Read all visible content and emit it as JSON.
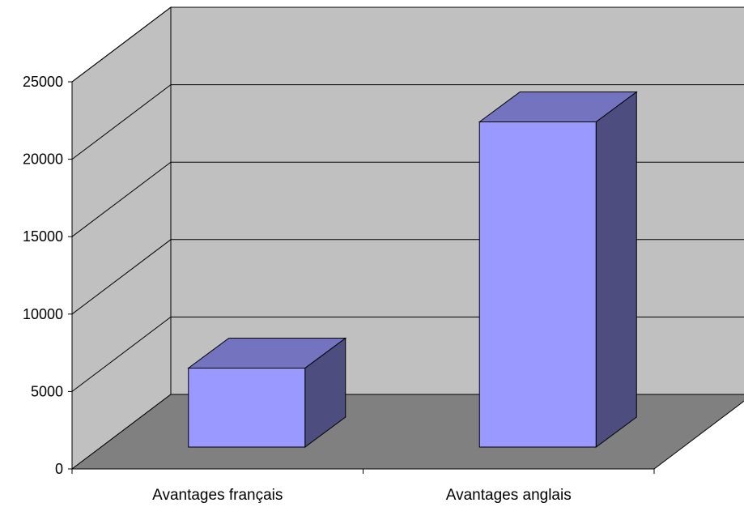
{
  "chart_data": {
    "type": "bar",
    "categories": [
      "Avantages français",
      "Avantages anglais"
    ],
    "values": [
      5100,
      21000
    ],
    "ylim": [
      0,
      25000
    ],
    "yticks": [
      0,
      5000,
      10000,
      15000,
      20000,
      25000
    ],
    "grid": true,
    "legend": "none",
    "colors": {
      "bar_front": "#9999ff",
      "bar_top": "#7373c0",
      "bar_side": "#4d4d80",
      "back_wall": "#c0c0c0",
      "side_wall": "#c0c0c0",
      "floor": "#808080"
    }
  }
}
